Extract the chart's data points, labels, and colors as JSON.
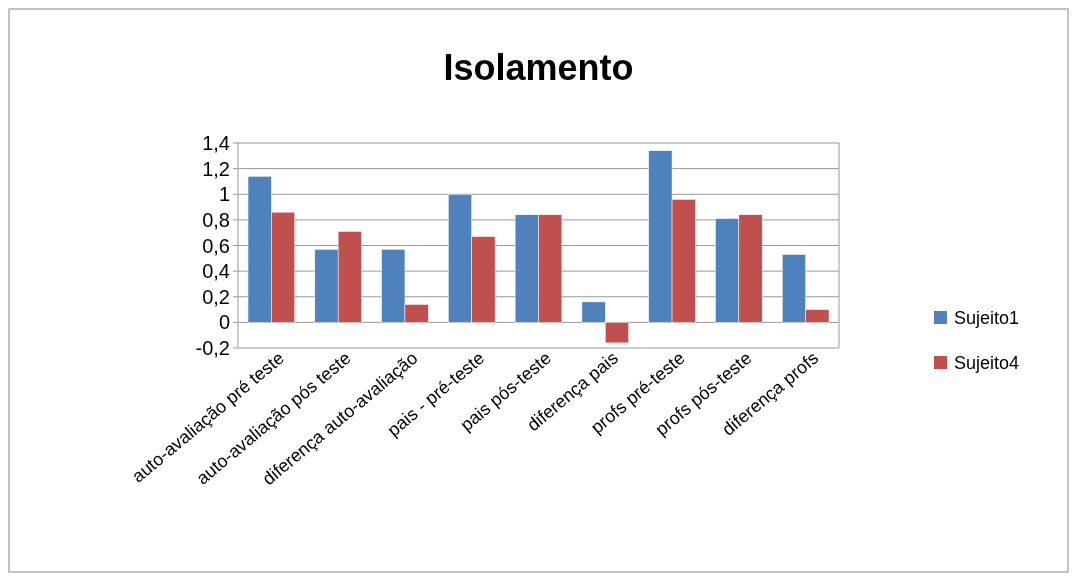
{
  "chart_data": {
    "type": "bar",
    "title": "Isolamento",
    "categories": [
      "auto-avaliação pré teste",
      "auto-avaliação pós teste",
      "diferença auto-avaliação",
      "pais - pré-teste",
      "pais pós-teste",
      "diferença pais",
      "profs pré-teste",
      "profs pós-teste",
      "diferença profs"
    ],
    "series": [
      {
        "name": "Sujeito1",
        "color": "#4f81bd",
        "values": [
          1.14,
          0.57,
          0.57,
          1.0,
          0.84,
          0.16,
          1.34,
          0.81,
          0.53
        ]
      },
      {
        "name": "Sujeito4",
        "color": "#c0504d",
        "values": [
          0.86,
          0.71,
          0.14,
          0.67,
          0.84,
          -0.16,
          0.96,
          0.84,
          0.1
        ]
      }
    ],
    "ylim": [
      -0.2,
      1.4
    ],
    "yticks": [
      {
        "value": -0.2,
        "label": "-0,2"
      },
      0,
      {
        "value": 0.2,
        "label": "0,2"
      },
      {
        "value": 0.4,
        "label": "0,4"
      },
      {
        "value": 0.6,
        "label": "0,6"
      },
      {
        "value": 0.8,
        "label": "0,8"
      },
      1,
      {
        "value": 1.2,
        "label": "1,2"
      },
      {
        "value": 1.4,
        "label": "1,4"
      }
    ],
    "grid": "y",
    "legend": "right"
  }
}
